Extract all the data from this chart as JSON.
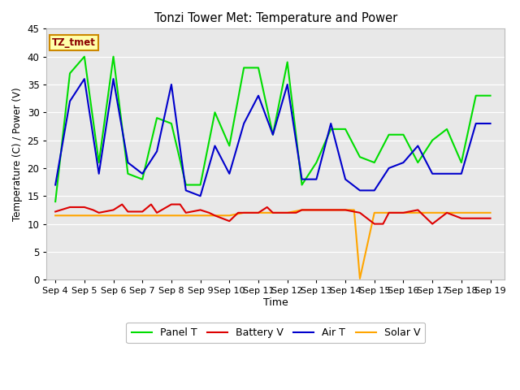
{
  "title": "Tonzi Tower Met: Temperature and Power",
  "xlabel": "Time",
  "ylabel": "Temperature (C) / Power (V)",
  "ylim": [
    0,
    45
  ],
  "yticks": [
    0,
    5,
    10,
    15,
    20,
    25,
    30,
    35,
    40,
    45
  ],
  "x_labels": [
    "Sep 4",
    "Sep 5",
    "Sep 6",
    "Sep 7",
    "Sep 8",
    "Sep 9",
    "Sep 10",
    "Sep 11",
    "Sep 12",
    "Sep 13",
    "Sep 14",
    "Sep 15",
    "Sep 16",
    "Sep 17",
    "Sep 18",
    "Sep 19"
  ],
  "x_tick_positions": [
    4,
    5,
    6,
    7,
    8,
    9,
    10,
    11,
    12,
    13,
    14,
    15,
    16,
    17,
    18,
    19
  ],
  "panel_T_x": [
    4.0,
    4.5,
    5.0,
    5.5,
    6.0,
    6.5,
    7.0,
    7.5,
    8.0,
    8.5,
    9.0,
    9.5,
    10.0,
    10.5,
    11.0,
    11.5,
    12.0,
    12.5,
    13.0,
    13.5,
    14.0,
    14.5,
    15.0,
    15.5,
    16.0,
    16.5,
    17.0,
    17.5,
    18.0,
    18.5,
    19.0
  ],
  "panel_T": [
    14,
    37,
    40,
    21,
    40,
    19,
    18,
    29,
    28,
    17,
    17,
    30,
    24,
    38,
    38,
    26,
    39,
    17,
    21,
    27,
    27,
    22,
    21,
    26,
    26,
    21,
    25,
    27,
    21,
    33,
    33
  ],
  "battery_V_x": [
    4.0,
    4.5,
    5.0,
    5.3,
    5.5,
    6.0,
    6.3,
    6.5,
    7.0,
    7.3,
    7.5,
    8.0,
    8.3,
    8.5,
    9.0,
    9.3,
    9.5,
    10.0,
    10.3,
    10.5,
    11.0,
    11.3,
    11.5,
    12.0,
    12.3,
    12.5,
    13.0,
    13.5,
    14.0,
    14.5,
    15.0,
    15.3,
    15.5,
    16.0,
    16.5,
    17.0,
    17.5,
    18.0,
    18.5,
    19.0
  ],
  "battery_V": [
    12.2,
    13.0,
    13.0,
    12.5,
    12.0,
    12.5,
    13.5,
    12.2,
    12.2,
    13.5,
    12.0,
    13.5,
    13.5,
    12.0,
    12.5,
    12.0,
    11.5,
    10.5,
    12.0,
    12.0,
    12.0,
    13.0,
    12.0,
    12.0,
    12.0,
    12.5,
    12.5,
    12.5,
    12.5,
    12.0,
    10.0,
    10.0,
    12.0,
    12.0,
    12.5,
    10.0,
    12.0,
    11.0,
    11.0,
    11.0
  ],
  "air_T_x": [
    4.0,
    4.5,
    5.0,
    5.5,
    6.0,
    6.5,
    7.0,
    7.5,
    8.0,
    8.5,
    9.0,
    9.5,
    10.0,
    10.5,
    11.0,
    11.5,
    12.0,
    12.5,
    13.0,
    13.5,
    14.0,
    14.5,
    15.0,
    15.5,
    16.0,
    16.5,
    17.0,
    17.5,
    18.0,
    18.5,
    19.0
  ],
  "air_T": [
    17,
    32,
    36,
    19,
    36,
    21,
    19,
    23,
    35,
    16,
    15,
    24,
    19,
    28,
    33,
    26,
    35,
    18,
    18,
    28,
    18,
    16,
    16,
    20,
    21,
    24,
    19,
    19,
    19,
    28,
    28
  ],
  "solar_V_x": [
    4.0,
    4.5,
    5.0,
    5.5,
    6.0,
    6.5,
    7.0,
    7.5,
    8.0,
    8.5,
    9.0,
    9.5,
    10.0,
    10.5,
    11.0,
    11.5,
    12.0,
    12.5,
    13.0,
    13.5,
    14.0,
    14.3,
    14.5,
    15.0,
    15.5,
    16.0,
    16.5,
    17.0,
    17.5,
    18.0,
    18.5,
    19.0
  ],
  "solar_V": [
    11.5,
    11.5,
    11.5,
    11.5,
    11.5,
    11.5,
    11.5,
    11.5,
    11.5,
    11.5,
    11.5,
    11.5,
    11.5,
    12.0,
    12.0,
    12.0,
    12.0,
    12.5,
    12.5,
    12.5,
    12.5,
    12.5,
    0.2,
    12.0,
    12.0,
    12.0,
    12.0,
    12.0,
    12.0,
    12.0,
    12.0,
    12.0
  ],
  "panel_color": "#00dd00",
  "battery_color": "#dd0000",
  "air_color": "#0000cc",
  "solar_color": "#ffa500",
  "bg_color": "#e8e8e8",
  "legend_label": "TZ_tmet",
  "legend_box_facecolor": "#ffffaa",
  "legend_box_edgecolor": "#cc8800"
}
